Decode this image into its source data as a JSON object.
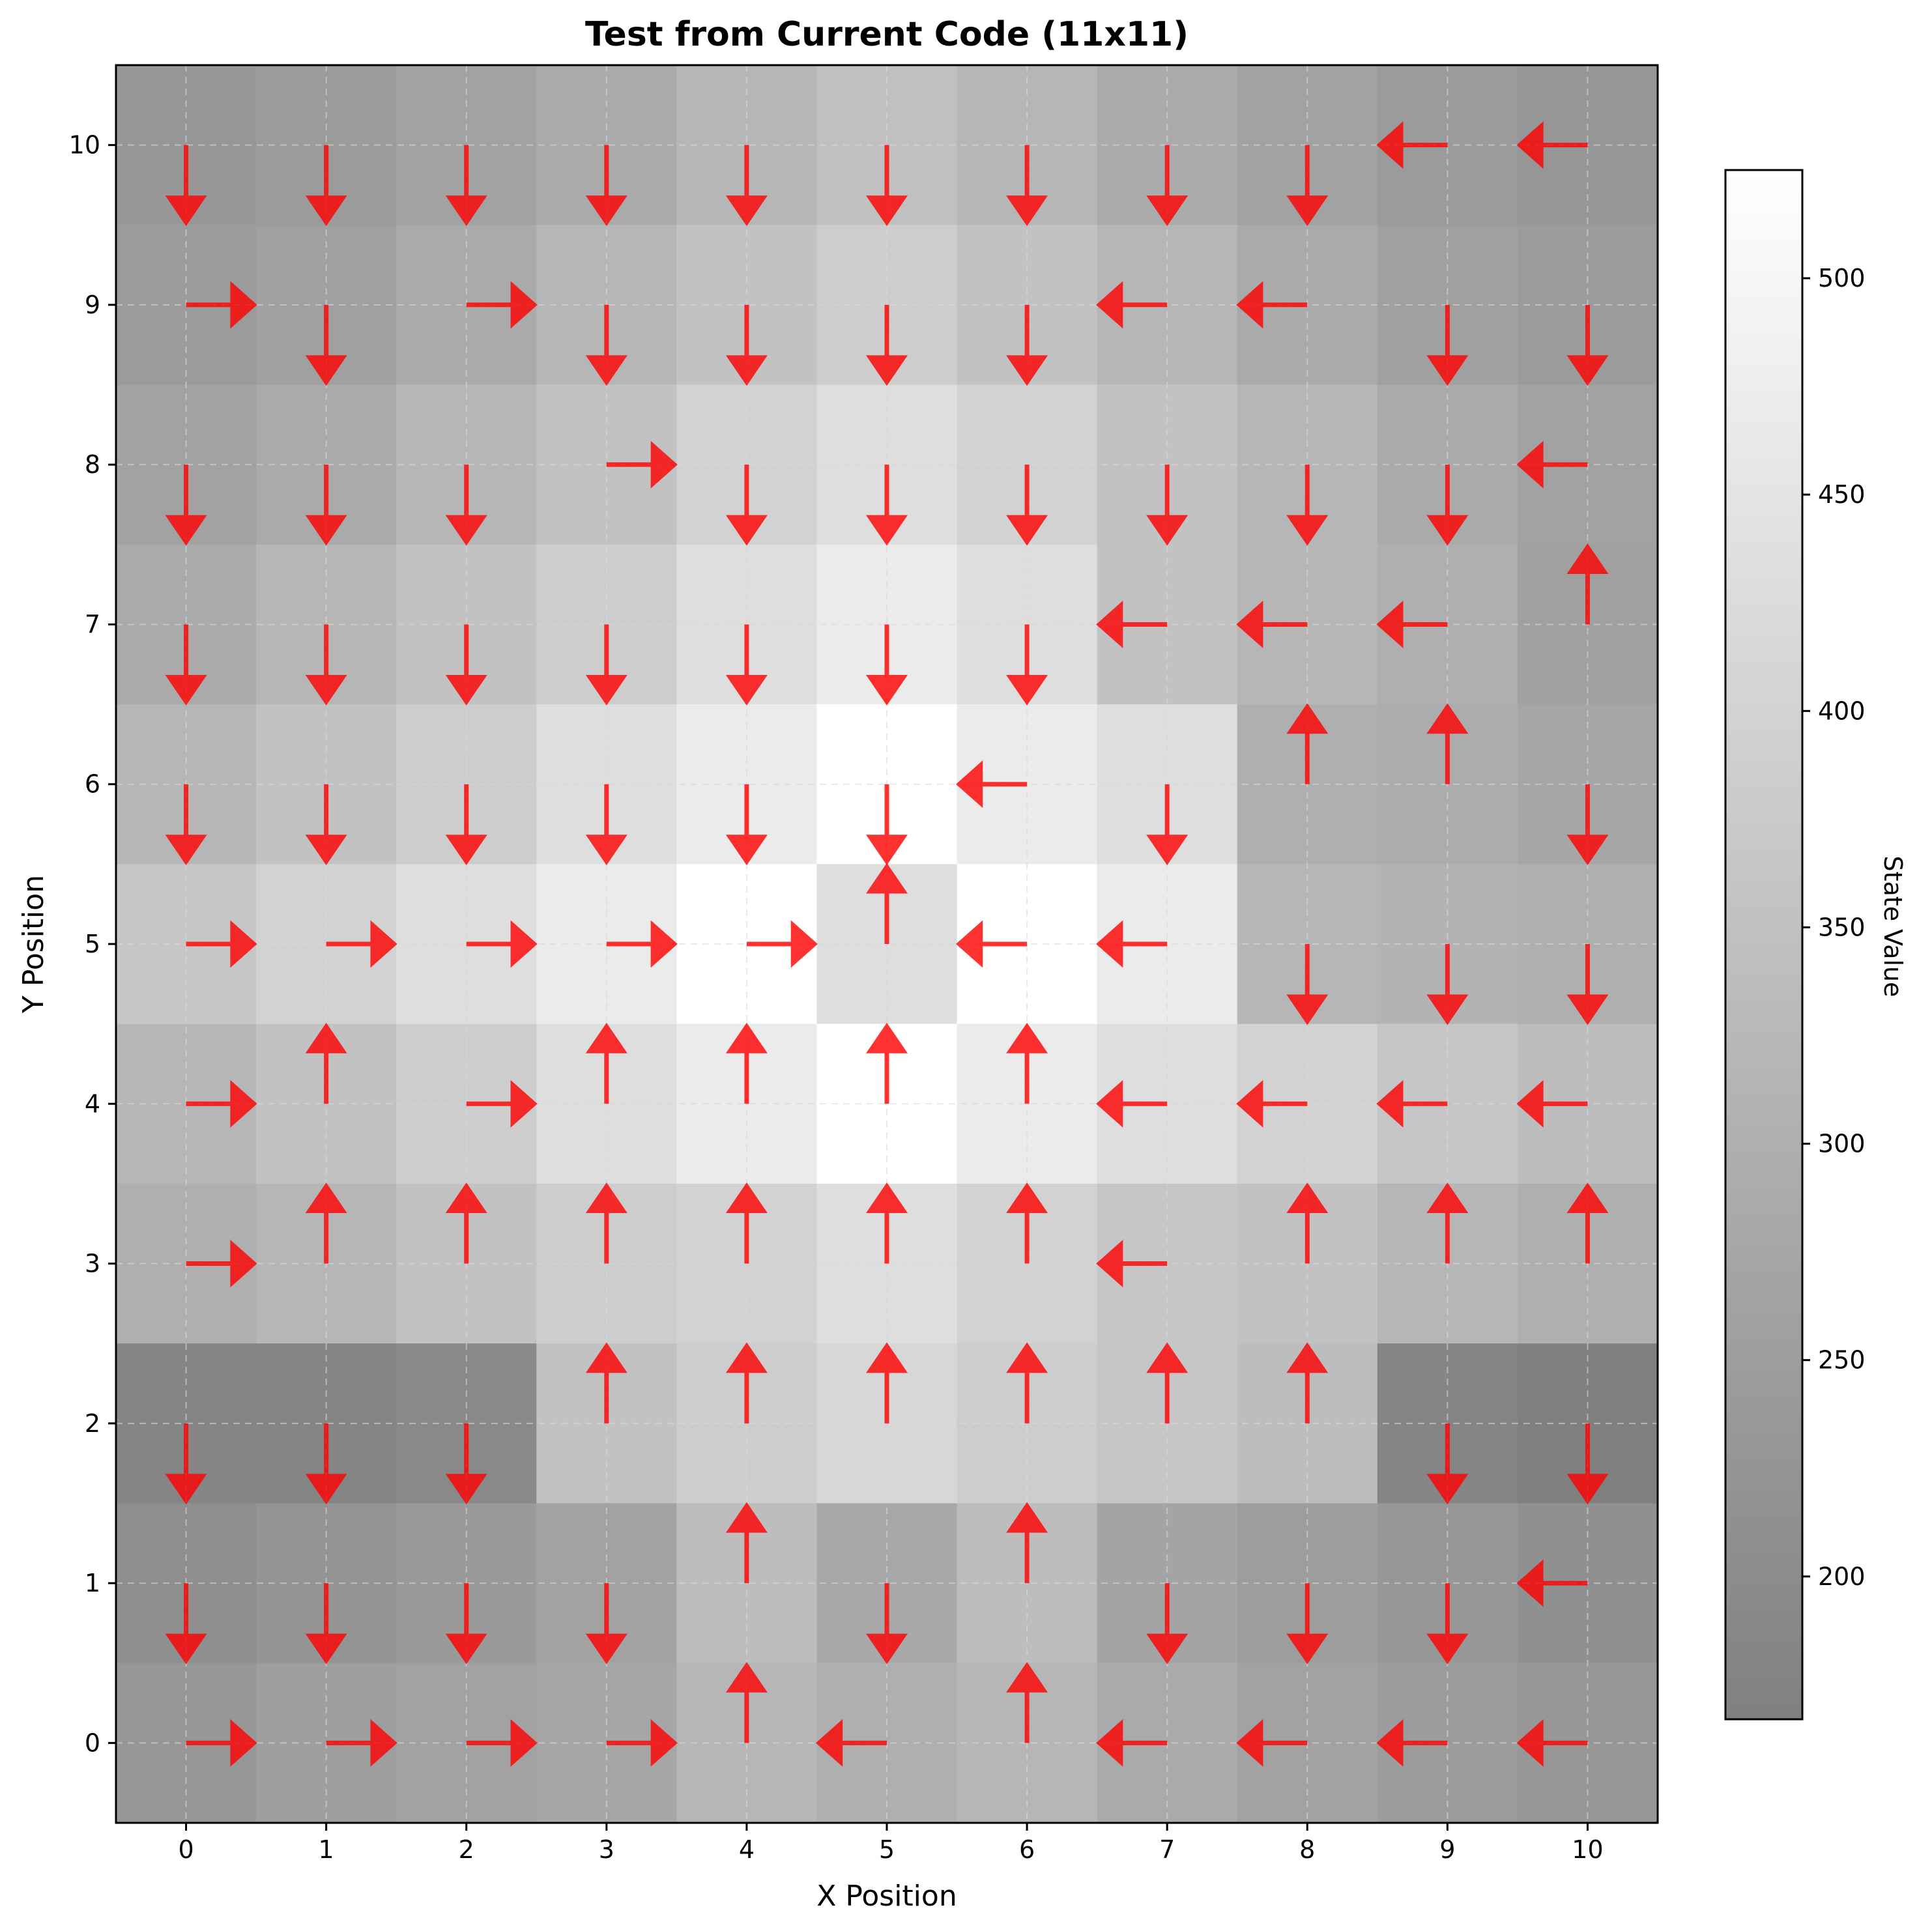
{
  "chart_data": {
    "type": "heatmap",
    "title": "Test from Current Code (11x11)",
    "xlabel": "X Position",
    "ylabel": "Y Position",
    "x": [
      0,
      1,
      2,
      3,
      4,
      5,
      6,
      7,
      8,
      9,
      10
    ],
    "y": [
      0,
      1,
      2,
      3,
      4,
      5,
      6,
      7,
      8,
      9,
      10
    ],
    "xlim": [
      -0.5,
      10.5
    ],
    "ylim": [
      -0.5,
      10.5
    ],
    "grid": true,
    "colormap": "gray",
    "colorbar": {
      "label": "State Value",
      "vmin": 167,
      "vmax": 525,
      "ticks": [
        200,
        250,
        300,
        350,
        400,
        450,
        500
      ]
    },
    "values_row_top_to_bottom": [
      [
        232,
        243,
        262,
        285,
        320,
        348,
        318,
        288,
        262,
        243,
        230
      ],
      [
        243,
        258,
        285,
        318,
        352,
        385,
        352,
        318,
        285,
        258,
        243
      ],
      [
        262,
        285,
        318,
        352,
        398,
        432,
        398,
        352,
        318,
        285,
        262
      ],
      [
        285,
        318,
        352,
        385,
        432,
        470,
        432,
        352,
        318,
        300,
        258
      ],
      [
        318,
        352,
        385,
        432,
        470,
        525,
        470,
        432,
        300,
        290,
        275
      ],
      [
        365,
        398,
        432,
        470,
        525,
        432,
        525,
        470,
        318,
        310,
        300
      ],
      [
        318,
        352,
        385,
        432,
        470,
        525,
        470,
        432,
        398,
        365,
        340
      ],
      [
        300,
        318,
        352,
        385,
        398,
        432,
        398,
        365,
        352,
        318,
        300
      ],
      [
        182,
        182,
        192,
        352,
        385,
        412,
        385,
        365,
        340,
        182,
        168
      ],
      [
        210,
        222,
        240,
        262,
        340,
        280,
        340,
        268,
        250,
        232,
        212
      ],
      [
        232,
        252,
        262,
        275,
        318,
        300,
        318,
        285,
        262,
        245,
        232
      ]
    ],
    "arrows_row_top_to_bottom": [
      [
        "D",
        "D",
        "D",
        "D",
        "D",
        "D",
        "D",
        "D",
        "D",
        "L",
        "L"
      ],
      [
        "R",
        "D",
        "R",
        "D",
        "D",
        "D",
        "D",
        "L",
        "L",
        "D",
        "D"
      ],
      [
        "D",
        "D",
        "D",
        "R",
        "D",
        "D",
        "D",
        "D",
        "D",
        "D",
        "L"
      ],
      [
        "D",
        "D",
        "D",
        "D",
        "D",
        "D",
        "D",
        "L",
        "L",
        "L",
        "U"
      ],
      [
        "D",
        "D",
        "D",
        "D",
        "D",
        "D",
        "L",
        "D",
        "U",
        "U",
        "D"
      ],
      [
        "R",
        "R",
        "R",
        "R",
        "R",
        "U",
        "L",
        "L",
        "D",
        "D",
        "D"
      ],
      [
        "R",
        "U",
        "R",
        "U",
        "U",
        "U",
        "U",
        "L",
        "L",
        "L",
        "L"
      ],
      [
        "R",
        "U",
        "U",
        "U",
        "U",
        "U",
        "U",
        "L",
        "U",
        "U",
        "U"
      ],
      [
        "D",
        "D",
        "D",
        "U",
        "U",
        "U",
        "U",
        "U",
        "U",
        "D",
        "D"
      ],
      [
        "D",
        "D",
        "D",
        "D",
        "U",
        "D",
        "U",
        "D",
        "D",
        "D",
        "L"
      ],
      [
        "R",
        "R",
        "R",
        "R",
        "U",
        "L",
        "U",
        "L",
        "L",
        "L",
        "L"
      ]
    ],
    "arrow_color": "#ff0000"
  }
}
